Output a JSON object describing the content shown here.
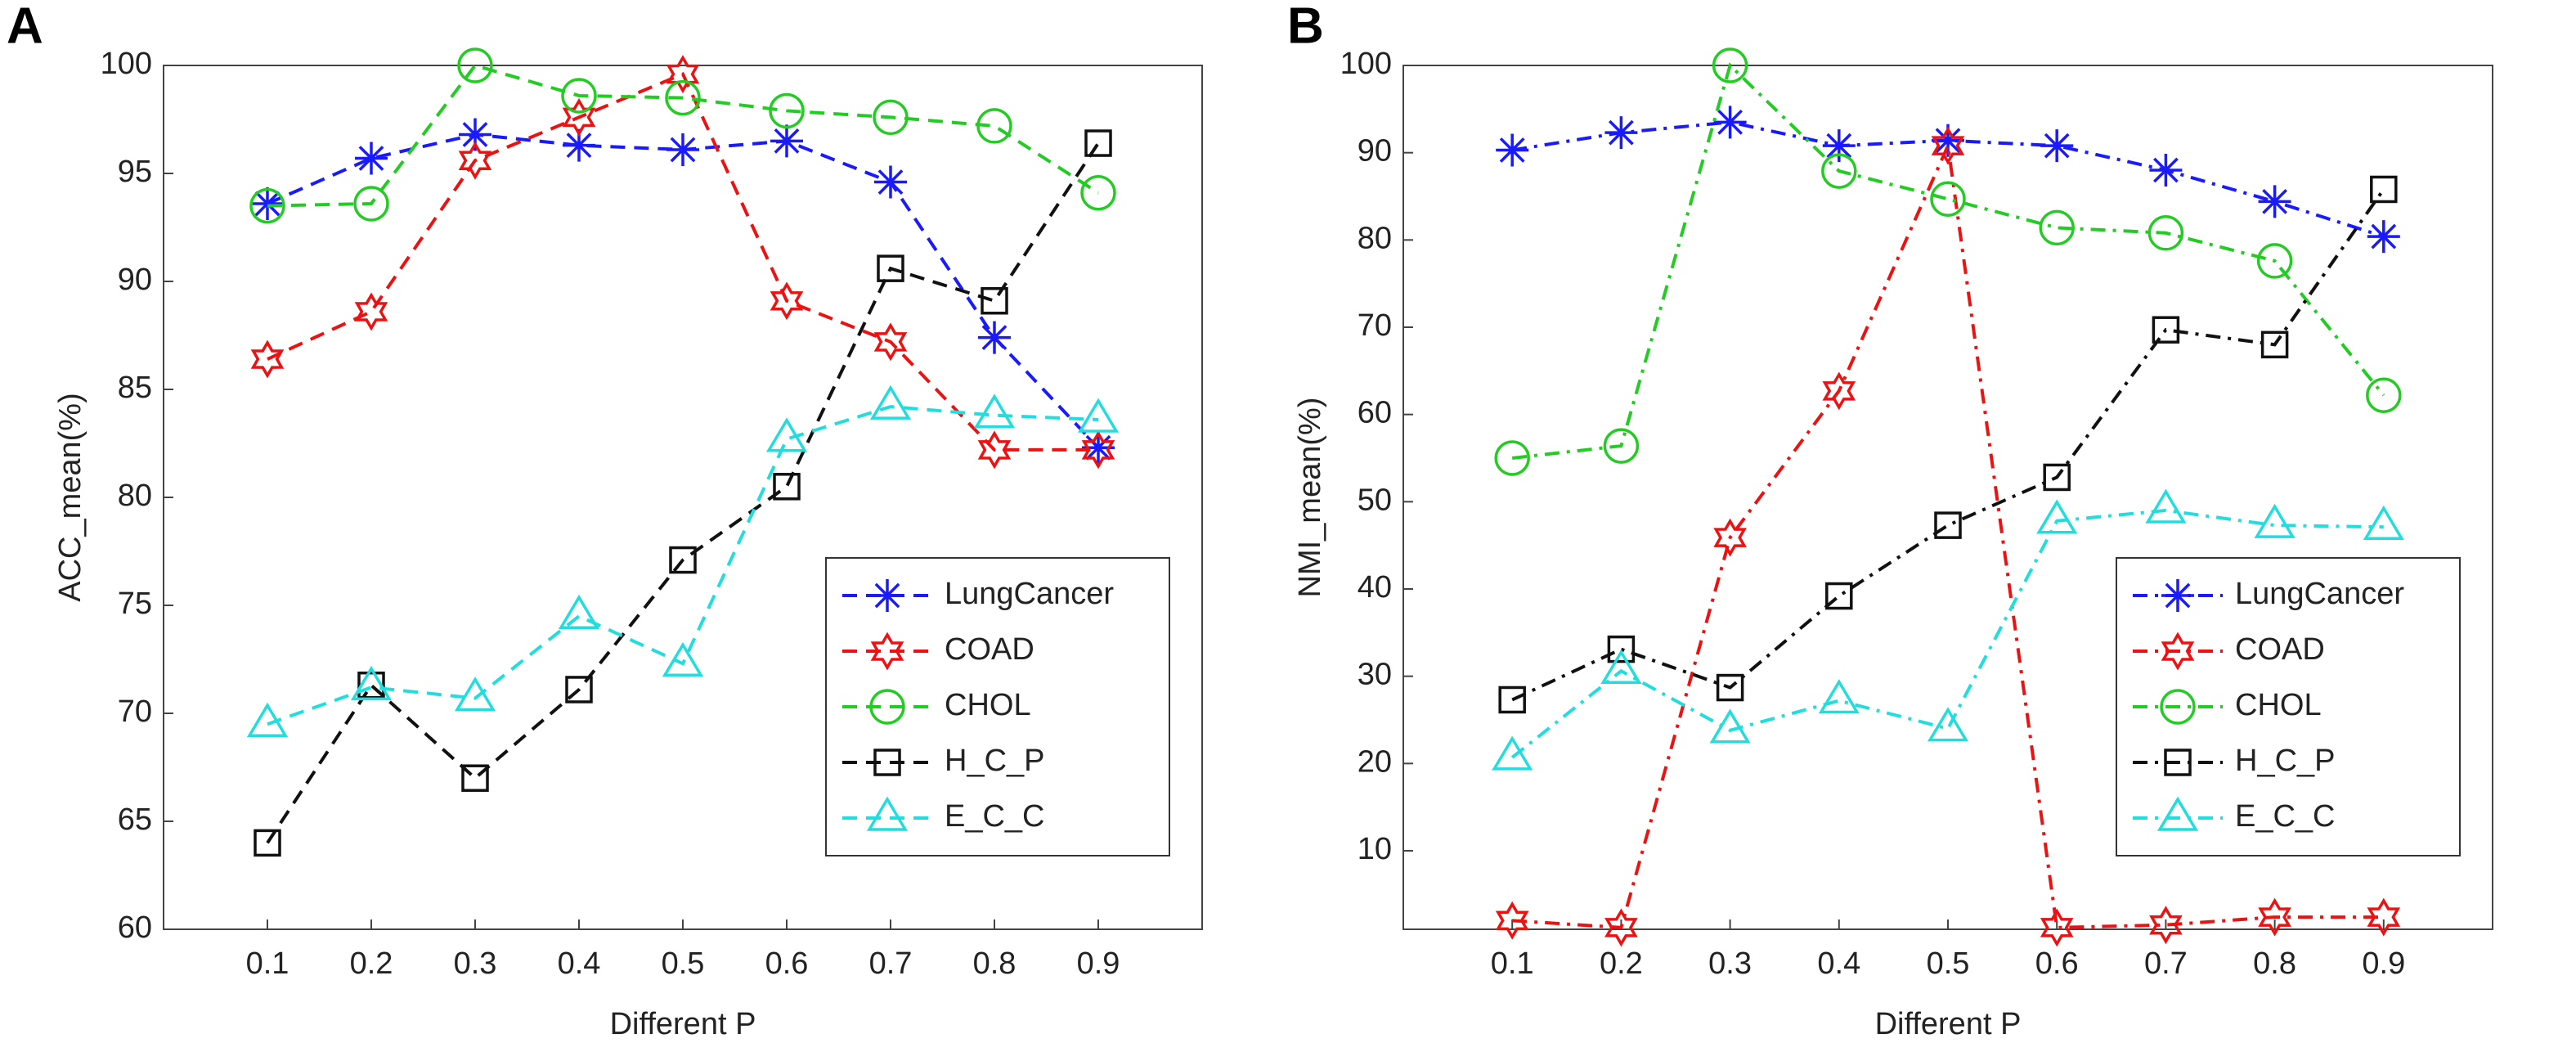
{
  "chart_data": [
    {
      "type": "line",
      "panel_label": "A",
      "xlabel": "Different P",
      "ylabel": "ACC_mean(%)",
      "x": [
        0.1,
        0.2,
        0.3,
        0.4,
        0.5,
        0.6,
        0.7,
        0.8,
        0.9
      ],
      "xlim": [
        0,
        1
      ],
      "xticks": [
        0.1,
        0.2,
        0.3,
        0.4,
        0.5,
        0.6,
        0.7,
        0.8,
        0.9
      ],
      "ylim": [
        60,
        100
      ],
      "yticks": [
        60,
        65,
        70,
        75,
        80,
        85,
        90,
        95,
        100
      ],
      "line_style": "dashed",
      "legend": "lower right",
      "series": [
        {
          "name": "LungCancer",
          "color": "#1a1aff",
          "marker": "asterisk",
          "values": [
            93.6,
            95.7,
            96.8,
            96.3,
            96.1,
            96.5,
            94.6,
            87.4,
            82.3
          ]
        },
        {
          "name": "COAD",
          "color": "#ee1111",
          "marker": "hexagram",
          "values": [
            86.4,
            88.6,
            95.6,
            97.6,
            99.6,
            89.1,
            87.2,
            82.2,
            82.2
          ]
        },
        {
          "name": "CHOL",
          "color": "#22cc22",
          "marker": "circle",
          "values": [
            93.5,
            93.6,
            100,
            98.6,
            98.5,
            97.9,
            97.6,
            97.2,
            94.1
          ]
        },
        {
          "name": "H_C_P",
          "color": "#111111",
          "marker": "square",
          "values": [
            64,
            71.3,
            67,
            71.1,
            77.1,
            80.5,
            90.6,
            89.1,
            96.4
          ]
        },
        {
          "name": "E_C_C",
          "color": "#22dddd",
          "marker": "triangle",
          "values": [
            69.5,
            71.2,
            70.7,
            74.5,
            72.3,
            82.7,
            84.2,
            83.8,
            83.6
          ]
        }
      ]
    },
    {
      "type": "line",
      "panel_label": "B",
      "xlabel": "Different P",
      "ylabel": "NMI_mean(%)",
      "x": [
        0.1,
        0.2,
        0.3,
        0.4,
        0.5,
        0.6,
        0.7,
        0.8,
        0.9
      ],
      "xlim": [
        0,
        1
      ],
      "xticks": [
        0.1,
        0.2,
        0.3,
        0.4,
        0.5,
        0.6,
        0.7,
        0.8,
        0.9
      ],
      "ylim": [
        1,
        100
      ],
      "yticks": [
        10,
        20,
        30,
        40,
        50,
        60,
        70,
        80,
        90,
        100
      ],
      "line_style": "dashdot",
      "legend": "lower right",
      "series": [
        {
          "name": "LungCancer",
          "color": "#1a1aff",
          "marker": "asterisk",
          "values": [
            90.3,
            92.3,
            93.5,
            90.8,
            91.4,
            90.8,
            88,
            84.4,
            80.4
          ]
        },
        {
          "name": "COAD",
          "color": "#ee1111",
          "marker": "hexagram",
          "values": [
            2,
            1.2,
            45.9,
            62.7,
            90.8,
            1.2,
            1.5,
            2.4,
            2.4
          ]
        },
        {
          "name": "CHOL",
          "color": "#22cc22",
          "marker": "circle",
          "values": [
            55,
            56.4,
            100,
            87.9,
            84.7,
            81.4,
            80.8,
            77.6,
            62.2
          ]
        },
        {
          "name": "H_C_P",
          "color": "#111111",
          "marker": "square",
          "values": [
            27.3,
            33.1,
            28.7,
            39.2,
            47.3,
            52.8,
            69.7,
            68,
            85.8
          ]
        },
        {
          "name": "E_C_C",
          "color": "#22dddd",
          "marker": "triangle",
          "values": [
            20.7,
            30.6,
            23.8,
            27.2,
            24,
            47.8,
            49,
            47.3,
            47.1
          ]
        }
      ]
    }
  ]
}
